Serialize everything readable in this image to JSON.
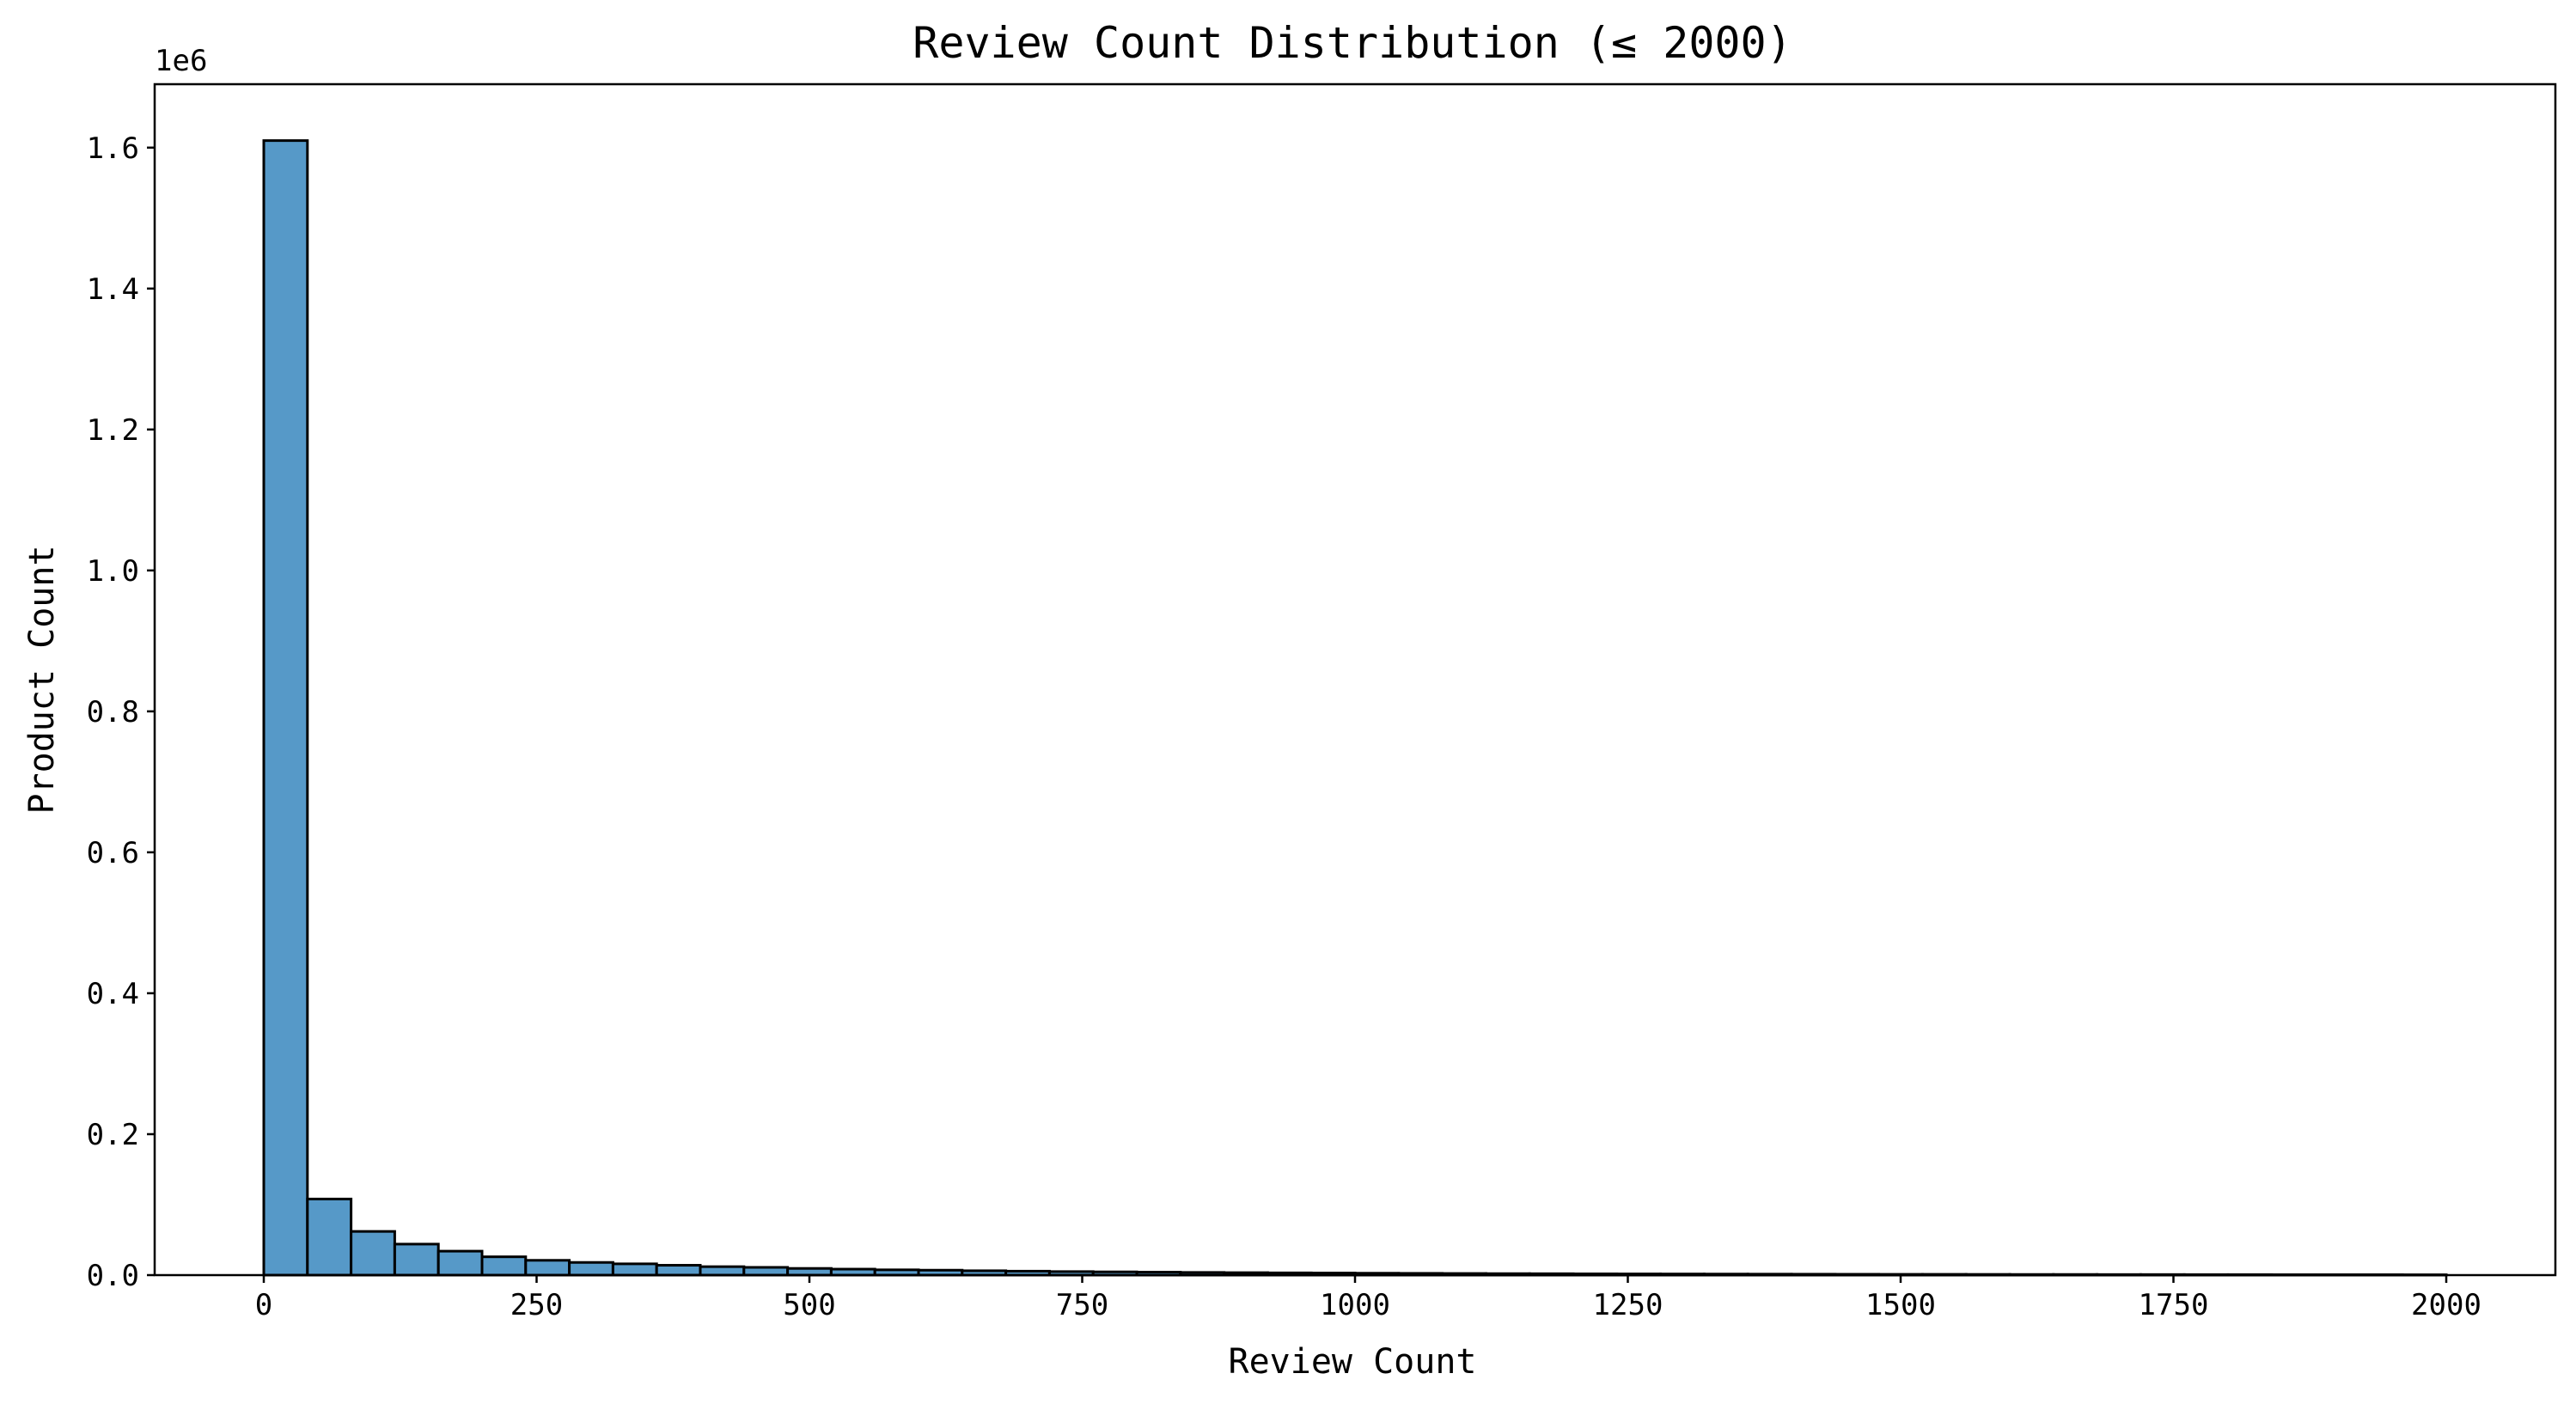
{
  "chart_data": {
    "type": "bar",
    "title": "Review Count Distribution (≤ 2000)",
    "xlabel": "Review Count",
    "ylabel": "Product Count",
    "y_offset_label": "1e6",
    "xlim": [
      -100,
      2100
    ],
    "ylim": [
      0,
      1.69
    ],
    "xticks": [
      0,
      250,
      500,
      750,
      1000,
      1250,
      1500,
      1750,
      2000
    ],
    "xtick_labels": [
      "0",
      "250",
      "500",
      "750",
      "1000",
      "1250",
      "1500",
      "1750",
      "2000"
    ],
    "yticks": [
      0.0,
      0.2,
      0.4,
      0.6,
      0.8,
      1.0,
      1.2,
      1.4,
      1.6
    ],
    "ytick_labels": [
      "0.0",
      "0.2",
      "0.4",
      "0.6",
      "0.8",
      "1.0",
      "1.2",
      "1.4",
      "1.6"
    ],
    "y_unit": "1e6 products",
    "bin_start": 0,
    "bin_width": 40,
    "values": [
      1.61,
      0.108,
      0.062,
      0.044,
      0.034,
      0.026,
      0.021,
      0.018,
      0.016,
      0.014,
      0.012,
      0.011,
      0.0095,
      0.0085,
      0.0075,
      0.007,
      0.0062,
      0.0056,
      0.005,
      0.0046,
      0.0042,
      0.0038,
      0.0035,
      0.0032,
      0.003,
      0.0027,
      0.0025,
      0.0023,
      0.0021,
      0.002,
      0.0018,
      0.0017,
      0.0016,
      0.0015,
      0.0014,
      0.0013,
      0.0012,
      0.0011,
      0.0011,
      0.001,
      0.0009,
      0.0009,
      0.0008,
      0.0008,
      0.0007,
      0.0007,
      0.0006,
      0.0006,
      0.0006,
      0.0005
    ],
    "grid": false,
    "legend": "none",
    "colors": {
      "bar_fill": "#5699c8",
      "bar_edge": "#000000"
    }
  }
}
